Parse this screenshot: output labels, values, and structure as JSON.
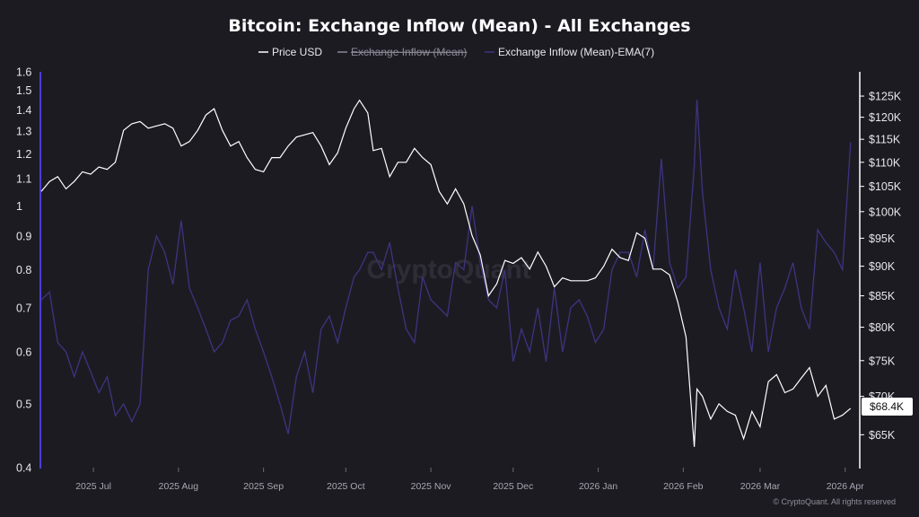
{
  "chart_data": {
    "type": "line",
    "title": "Bitcoin: Exchange Inflow (Mean) - All Exchanges",
    "legend": [
      {
        "name": "Price USD",
        "color": "#ffffff",
        "visible": true
      },
      {
        "name": "Exchange Inflow (Mean)",
        "color": "#8a8894",
        "visible": false
      },
      {
        "name": "Exchange Inflow (Mean)-EMA(7)",
        "color": "#3b3580",
        "visible": true
      }
    ],
    "legend_position": "top-center",
    "watermark": "CryptoQuant",
    "credit": "© CryptoQuant. All rights reserved",
    "price_badge": "$68.4K",
    "x_ticks": [
      "2025 Jul",
      "2025 Aug",
      "2025 Sep",
      "2025 Oct",
      "2025 Nov",
      "2025 Dec",
      "2026 Jan",
      "2026 Feb",
      "2026 Mar",
      "2026 Apr"
    ],
    "left_axis": {
      "scale": "log",
      "ticks": [
        "0.4",
        "0.5",
        "0.6",
        "0.7",
        "0.8",
        "0.9",
        "1",
        "1.1",
        "1.2",
        "1.3",
        "1.4",
        "1.5",
        "1.6"
      ],
      "range": [
        0.4,
        1.6
      ]
    },
    "right_axis": {
      "scale": "log",
      "ticks": [
        "$65K",
        "$70K",
        "$75K",
        "$80K",
        "$85K",
        "$90K",
        "$95K",
        "$100K",
        "$105K",
        "$110K",
        "$115K",
        "$120K",
        "$125K"
      ],
      "range": [
        61,
        131
      ]
    },
    "grid": false,
    "x_range": [
      "2025-06-12",
      "2026-04-06"
    ],
    "series": [
      {
        "name": "Price USD",
        "axis": "right",
        "x": [
          "2025-06-12",
          "2025-06-15",
          "2025-06-18",
          "2025-06-21",
          "2025-06-24",
          "2025-06-27",
          "2025-06-30",
          "2025-07-03",
          "2025-07-06",
          "2025-07-09",
          "2025-07-12",
          "2025-07-15",
          "2025-07-18",
          "2025-07-21",
          "2025-07-24",
          "2025-07-27",
          "2025-07-30",
          "2025-08-02",
          "2025-08-05",
          "2025-08-08",
          "2025-08-11",
          "2025-08-14",
          "2025-08-17",
          "2025-08-20",
          "2025-08-23",
          "2025-08-26",
          "2025-08-29",
          "2025-09-01",
          "2025-09-04",
          "2025-09-07",
          "2025-09-10",
          "2025-09-13",
          "2025-09-16",
          "2025-09-19",
          "2025-09-22",
          "2025-09-25",
          "2025-09-28",
          "2025-10-01",
          "2025-10-04",
          "2025-10-06",
          "2025-10-09",
          "2025-10-11",
          "2025-10-14",
          "2025-10-17",
          "2025-10-20",
          "2025-10-23",
          "2025-10-26",
          "2025-10-29",
          "2025-11-01",
          "2025-11-04",
          "2025-11-07",
          "2025-11-10",
          "2025-11-13",
          "2025-11-16",
          "2025-11-19",
          "2025-11-22",
          "2025-11-25",
          "2025-11-28",
          "2025-12-01",
          "2025-12-04",
          "2025-12-07",
          "2025-12-10",
          "2025-12-13",
          "2025-12-16",
          "2025-12-19",
          "2025-12-22",
          "2025-12-25",
          "2025-12-28",
          "2025-12-31",
          "2026-01-03",
          "2026-01-06",
          "2026-01-09",
          "2026-01-12",
          "2026-01-15",
          "2026-01-18",
          "2026-01-21",
          "2026-01-24",
          "2026-01-27",
          "2026-01-30",
          "2026-02-02",
          "2026-02-05",
          "2026-02-06",
          "2026-02-08",
          "2026-02-11",
          "2026-02-14",
          "2026-02-17",
          "2026-02-20",
          "2026-02-23",
          "2026-02-26",
          "2026-03-01",
          "2026-03-04",
          "2026-03-07",
          "2026-03-10",
          "2026-03-13",
          "2026-03-16",
          "2026-03-19",
          "2026-03-22",
          "2026-03-25",
          "2026-03-28",
          "2026-03-31",
          "2026-04-03"
        ],
        "values": [
          104,
          106,
          107,
          104.5,
          106,
          108,
          107.5,
          109,
          108.5,
          110,
          117,
          118.5,
          119,
          117.5,
          118,
          118.5,
          117.5,
          113.5,
          114.5,
          117,
          120.5,
          122,
          117,
          113.5,
          114.5,
          111,
          108.5,
          108,
          111,
          111,
          113.5,
          115.5,
          116,
          116.5,
          113.5,
          109.5,
          112,
          117.5,
          122,
          124,
          121,
          112.5,
          113,
          107,
          110,
          110,
          113,
          111,
          109.5,
          104,
          101.5,
          104.5,
          101.5,
          95.5,
          92,
          85,
          87,
          91,
          90.5,
          91.5,
          89.5,
          92.5,
          90,
          86.5,
          88,
          87.5,
          87.5,
          87.5,
          88,
          90,
          93,
          91.5,
          91,
          96,
          95,
          89.5,
          89.5,
          88.5,
          84,
          78.5,
          63.5,
          71,
          70,
          67,
          69,
          68,
          67.5,
          64.5,
          68,
          66,
          72,
          73,
          70.5,
          71,
          72.5,
          74,
          70,
          71.5,
          67,
          67.5,
          68.4
        ]
      },
      {
        "name": "Exchange Inflow (Mean)-EMA(7)",
        "axis": "left",
        "x": [
          "2025-06-12",
          "2025-06-15",
          "2025-06-18",
          "2025-06-21",
          "2025-06-24",
          "2025-06-27",
          "2025-06-30",
          "2025-07-03",
          "2025-07-06",
          "2025-07-09",
          "2025-07-12",
          "2025-07-15",
          "2025-07-18",
          "2025-07-21",
          "2025-07-24",
          "2025-07-27",
          "2025-07-30",
          "2025-08-02",
          "2025-08-05",
          "2025-08-08",
          "2025-08-11",
          "2025-08-14",
          "2025-08-17",
          "2025-08-20",
          "2025-08-23",
          "2025-08-26",
          "2025-08-29",
          "2025-09-01",
          "2025-09-04",
          "2025-09-07",
          "2025-09-10",
          "2025-09-13",
          "2025-09-16",
          "2025-09-19",
          "2025-09-22",
          "2025-09-25",
          "2025-09-28",
          "2025-10-01",
          "2025-10-04",
          "2025-10-06",
          "2025-10-09",
          "2025-10-11",
          "2025-10-14",
          "2025-10-17",
          "2025-10-20",
          "2025-10-23",
          "2025-10-26",
          "2025-10-29",
          "2025-11-01",
          "2025-11-04",
          "2025-11-07",
          "2025-11-10",
          "2025-11-13",
          "2025-11-16",
          "2025-11-19",
          "2025-11-22",
          "2025-11-25",
          "2025-11-28",
          "2025-12-01",
          "2025-12-04",
          "2025-12-07",
          "2025-12-10",
          "2025-12-13",
          "2025-12-16",
          "2025-12-19",
          "2025-12-22",
          "2025-12-25",
          "2025-12-28",
          "2025-12-31",
          "2026-01-03",
          "2026-01-06",
          "2026-01-09",
          "2026-01-12",
          "2026-01-15",
          "2026-01-18",
          "2026-01-21",
          "2026-01-24",
          "2026-01-27",
          "2026-01-30",
          "2026-02-02",
          "2026-02-05",
          "2026-02-06",
          "2026-02-08",
          "2026-02-11",
          "2026-02-14",
          "2026-02-17",
          "2026-02-20",
          "2026-02-23",
          "2026-02-26",
          "2026-03-01",
          "2026-03-04",
          "2026-03-07",
          "2026-03-10",
          "2026-03-13",
          "2026-03-16",
          "2026-03-19",
          "2026-03-22",
          "2026-03-25",
          "2026-03-28",
          "2026-03-31",
          "2026-04-03"
        ],
        "values": [
          0.72,
          0.74,
          0.62,
          0.6,
          0.55,
          0.6,
          0.56,
          0.52,
          0.55,
          0.48,
          0.5,
          0.47,
          0.5,
          0.8,
          0.9,
          0.85,
          0.76,
          0.95,
          0.75,
          0.7,
          0.65,
          0.6,
          0.62,
          0.67,
          0.68,
          0.72,
          0.65,
          0.6,
          0.55,
          0.5,
          0.45,
          0.55,
          0.6,
          0.52,
          0.65,
          0.68,
          0.62,
          0.7,
          0.78,
          0.8,
          0.85,
          0.85,
          0.8,
          0.88,
          0.75,
          0.65,
          0.62,
          0.78,
          0.72,
          0.7,
          0.68,
          0.82,
          0.8,
          1.0,
          0.82,
          0.72,
          0.7,
          0.8,
          0.58,
          0.65,
          0.6,
          0.7,
          0.58,
          0.75,
          0.6,
          0.7,
          0.72,
          0.68,
          0.62,
          0.65,
          0.8,
          0.85,
          0.85,
          0.78,
          0.92,
          0.8,
          1.18,
          0.82,
          0.75,
          0.78,
          1.15,
          1.45,
          1.05,
          0.8,
          0.7,
          0.65,
          0.8,
          0.7,
          0.6,
          0.82,
          0.6,
          0.7,
          0.75,
          0.82,
          0.7,
          0.65,
          0.92,
          0.88,
          0.85,
          0.8,
          1.25
        ]
      }
    ]
  }
}
